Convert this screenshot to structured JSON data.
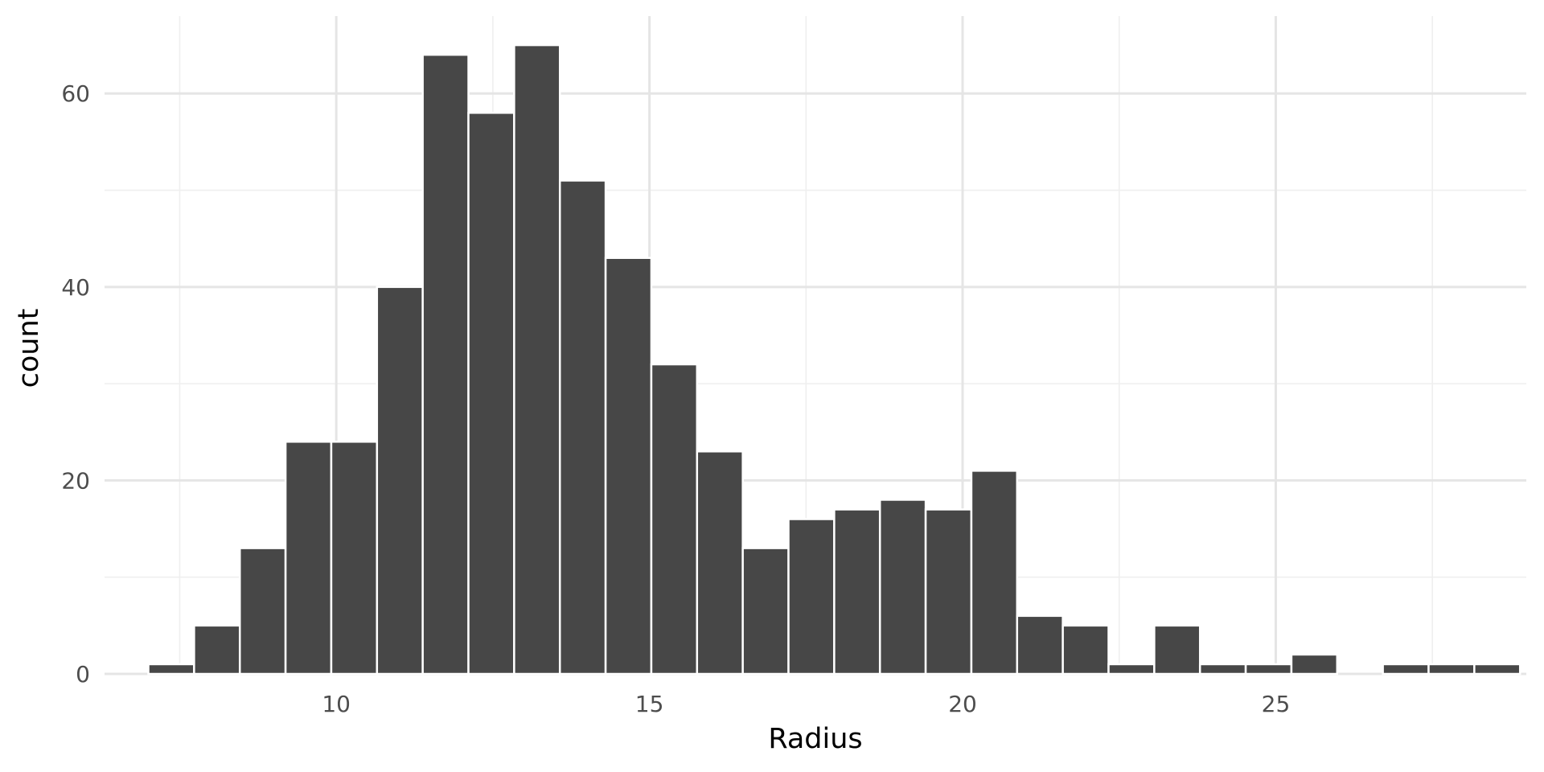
{
  "chart_data": {
    "type": "bar",
    "xlabel": "Radius",
    "ylabel": "count",
    "xlim": [
      6.3,
      29.0
    ],
    "ylim": [
      0,
      68
    ],
    "grid": true,
    "x_ticks": [
      10,
      15,
      20,
      25
    ],
    "x_tick_labels": [
      "10",
      "15",
      "20",
      "25"
    ],
    "y_ticks": [
      0,
      20,
      40,
      60
    ],
    "y_tick_labels": [
      "0",
      "20",
      "40",
      "60"
    ],
    "bins": {
      "start": 7.0,
      "width": 0.73,
      "counts": [
        1,
        5,
        13,
        24,
        24,
        40,
        64,
        58,
        65,
        51,
        43,
        32,
        23,
        13,
        16,
        17,
        18,
        17,
        21,
        6,
        5,
        1,
        5,
        1,
        1,
        2,
        0,
        1,
        1,
        1
      ]
    },
    "colors": {
      "bar": "#474747",
      "bar_outline": "#ffffff",
      "grid": "#e5e5e5"
    }
  }
}
